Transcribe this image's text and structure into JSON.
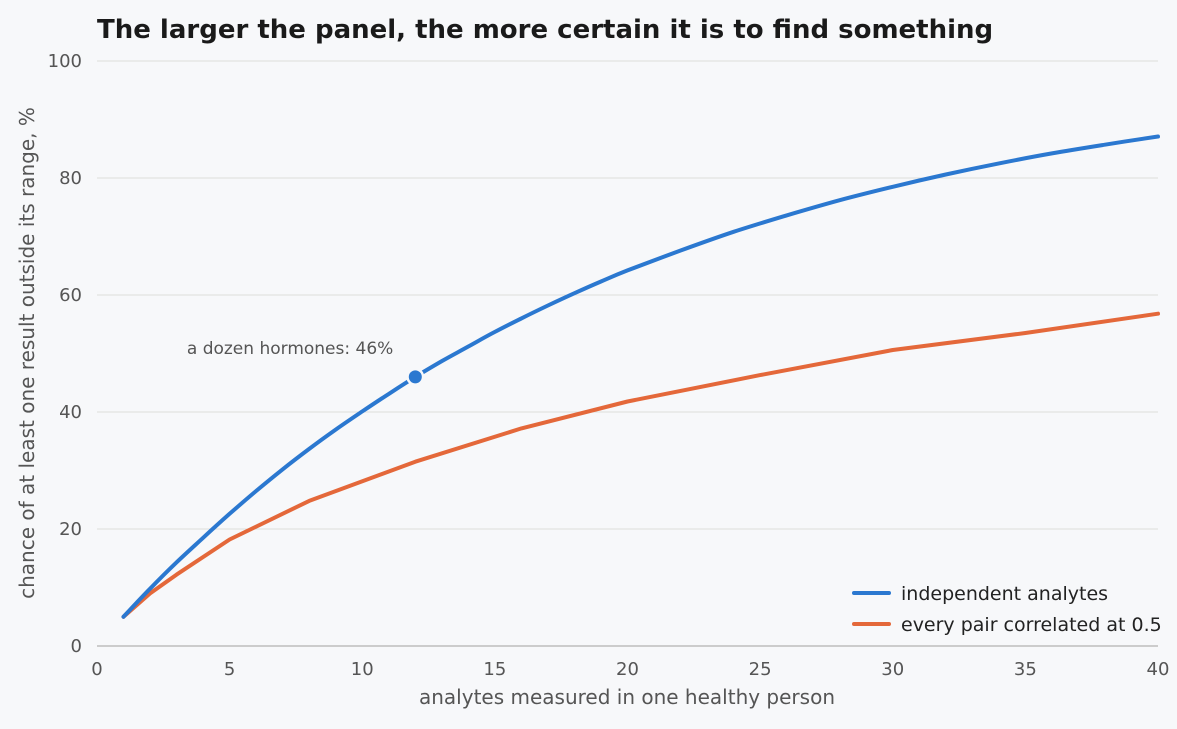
{
  "chart_data": {
    "type": "line",
    "title": "The larger the panel, the more certain it is to find something",
    "xlabel": "analytes measured in one healthy person",
    "ylabel": "chance of at least one result outside its range, %",
    "xlim": [
      0,
      40
    ],
    "ylim": [
      0,
      100
    ],
    "x_ticks": [
      0,
      5,
      10,
      15,
      20,
      25,
      30,
      35,
      40
    ],
    "y_ticks": [
      0,
      20,
      40,
      60,
      80,
      100
    ],
    "grid": "horizontal",
    "legend_position": "bottom-right",
    "series": [
      {
        "name": "independent analytes",
        "color": "#2b78d0",
        "x": [
          1,
          2,
          3,
          4,
          5,
          6,
          7,
          8,
          9,
          10,
          11,
          12,
          13,
          14,
          15,
          16,
          17,
          18,
          19,
          20,
          22,
          24,
          26,
          28,
          30,
          32,
          34,
          36,
          38,
          40
        ],
        "y": [
          5.0,
          9.8,
          14.3,
          18.5,
          22.6,
          26.5,
          30.2,
          33.7,
          37.0,
          40.1,
          43.1,
          46.0,
          48.7,
          51.2,
          53.7,
          56.0,
          58.2,
          60.3,
          62.3,
          64.2,
          67.6,
          70.8,
          73.6,
          76.2,
          78.5,
          80.6,
          82.5,
          84.2,
          85.7,
          87.1
        ]
      },
      {
        "name": "every pair correlated at 0.5",
        "color": "#e4683a",
        "x": [
          1,
          2,
          3,
          5,
          8,
          12,
          16,
          20,
          25,
          30,
          35,
          40
        ],
        "y": [
          5.0,
          9.0,
          12.2,
          18.2,
          24.8,
          31.5,
          37.2,
          41.8,
          46.3,
          50.6,
          53.5,
          56.8
        ]
      }
    ],
    "annotations": [
      {
        "text": "a dozen hormones: 46%",
        "x": 12,
        "y": 46,
        "series": "independent analytes"
      }
    ]
  }
}
